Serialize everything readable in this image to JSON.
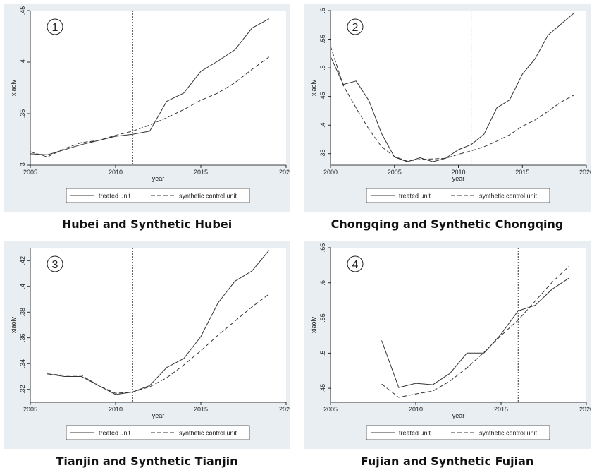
{
  "chart_data": [
    {
      "type": "line",
      "panel_number": "1",
      "caption": "Hubei and Synthetic Hubei",
      "xlabel": "year",
      "ylabel": "xiaolv",
      "xlim": [
        2005,
        2020
      ],
      "ylim": [
        0.3,
        0.45
      ],
      "xticks": [
        2005,
        2010,
        2015,
        2020
      ],
      "xtick_labels": [
        "2005",
        "2010",
        "2015",
        "2020"
      ],
      "yticks": [
        0.3,
        0.35,
        0.4,
        0.45
      ],
      "ytick_labels": [
        ".3",
        ".35",
        ".4",
        ".45"
      ],
      "intervention_year": 2011,
      "legend": [
        "treated unit",
        "synthetic control unit"
      ],
      "series": [
        {
          "name": "treated unit",
          "style": "solid",
          "x": [
            2005,
            2006,
            2007,
            2008,
            2009,
            2010,
            2011,
            2012,
            2013,
            2014,
            2015,
            2016,
            2017,
            2018,
            2019
          ],
          "y": [
            0.311,
            0.31,
            0.315,
            0.32,
            0.324,
            0.328,
            0.33,
            0.333,
            0.362,
            0.37,
            0.391,
            0.401,
            0.412,
            0.433,
            0.442
          ]
        },
        {
          "name": "synthetic control unit",
          "style": "dashed",
          "x": [
            2005,
            2006,
            2007,
            2008,
            2009,
            2010,
            2011,
            2012,
            2013,
            2014,
            2015,
            2016,
            2017,
            2018,
            2019
          ],
          "y": [
            0.313,
            0.308,
            0.316,
            0.322,
            0.324,
            0.329,
            0.333,
            0.339,
            0.346,
            0.354,
            0.363,
            0.37,
            0.38,
            0.393,
            0.405
          ]
        }
      ]
    },
    {
      "type": "line",
      "panel_number": "2",
      "caption": "Chongqing and Synthetic Chongqing",
      "xlabel": "year",
      "ylabel": "xiaolv",
      "xlim": [
        2000,
        2020
      ],
      "ylim": [
        0.33,
        0.6
      ],
      "xticks": [
        2000,
        2005,
        2010,
        2015,
        2020
      ],
      "xtick_labels": [
        "2000",
        "2005",
        "2010",
        "2015",
        "2020"
      ],
      "yticks": [
        0.35,
        0.4,
        0.45,
        0.5,
        0.55,
        0.6
      ],
      "ytick_labels": [
        ".35",
        ".4",
        ".45",
        ".5",
        ".55",
        ".6"
      ],
      "intervention_year": 2011,
      "legend": [
        "treated unit",
        "synthetic control unit"
      ],
      "series": [
        {
          "name": "treated unit",
          "style": "solid",
          "x": [
            2000,
            2001,
            2002,
            2003,
            2004,
            2005,
            2006,
            2007,
            2008,
            2009,
            2010,
            2011,
            2012,
            2013,
            2014,
            2015,
            2016,
            2017,
            2018,
            2019
          ],
          "y": [
            0.52,
            0.471,
            0.477,
            0.443,
            0.385,
            0.344,
            0.336,
            0.343,
            0.336,
            0.342,
            0.357,
            0.366,
            0.384,
            0.43,
            0.444,
            0.489,
            0.516,
            0.557,
            0.576,
            0.595
          ]
        },
        {
          "name": "synthetic control unit",
          "style": "dashed",
          "x": [
            2000,
            2001,
            2002,
            2003,
            2004,
            2005,
            2006,
            2007,
            2008,
            2009,
            2010,
            2011,
            2012,
            2013,
            2014,
            2015,
            2016,
            2017,
            2018,
            2019
          ],
          "y": [
            0.538,
            0.469,
            0.43,
            0.393,
            0.362,
            0.345,
            0.337,
            0.34,
            0.341,
            0.342,
            0.349,
            0.355,
            0.362,
            0.372,
            0.383,
            0.398,
            0.409,
            0.424,
            0.44,
            0.452
          ]
        }
      ]
    },
    {
      "type": "line",
      "panel_number": "3",
      "caption": "Tianjin and Synthetic Tianjin",
      "xlabel": "year",
      "ylabel": "xiaolv",
      "xlim": [
        2005,
        2020
      ],
      "ylim": [
        0.31,
        0.43
      ],
      "xticks": [
        2005,
        2010,
        2015,
        2020
      ],
      "xtick_labels": [
        "2005",
        "2010",
        "2015",
        "2020"
      ],
      "yticks": [
        0.32,
        0.34,
        0.36,
        0.38,
        0.4,
        0.42
      ],
      "ytick_labels": [
        ".32",
        ".34",
        ".36",
        ".38",
        ".4",
        ".42"
      ],
      "intervention_year": 2011,
      "legend": [
        "treated unit",
        "synthetic control unit"
      ],
      "series": [
        {
          "name": "treated unit",
          "style": "solid",
          "x": [
            2006,
            2007,
            2008,
            2009,
            2010,
            2011,
            2012,
            2013,
            2014,
            2015,
            2016,
            2017,
            2018,
            2019
          ],
          "y": [
            0.332,
            0.33,
            0.33,
            0.323,
            0.316,
            0.318,
            0.323,
            0.337,
            0.344,
            0.361,
            0.387,
            0.404,
            0.412,
            0.428
          ]
        },
        {
          "name": "synthetic control unit",
          "style": "dashed",
          "x": [
            2006,
            2007,
            2008,
            2009,
            2010,
            2011,
            2012,
            2013,
            2014,
            2015,
            2016,
            2017,
            2018,
            2019
          ],
          "y": [
            0.332,
            0.331,
            0.331,
            0.323,
            0.317,
            0.318,
            0.322,
            0.329,
            0.339,
            0.35,
            0.362,
            0.373,
            0.384,
            0.394
          ]
        }
      ]
    },
    {
      "type": "line",
      "panel_number": "4",
      "caption": "Fujian and Synthetic Fujian",
      "xlabel": "year",
      "ylabel": "xiaolv",
      "xlim": [
        2005,
        2020
      ],
      "ylim": [
        0.43,
        0.65
      ],
      "xticks": [
        2005,
        2010,
        2015,
        2020
      ],
      "xtick_labels": [
        "2005",
        "2010",
        "2015",
        "2020"
      ],
      "yticks": [
        0.45,
        0.5,
        0.55,
        0.6,
        0.65
      ],
      "ytick_labels": [
        ".45",
        ".5",
        ".55",
        ".6",
        ".65"
      ],
      "intervention_year": 2016,
      "legend": [
        "treated unit",
        "synthetic control unit"
      ],
      "series": [
        {
          "name": "treated unit",
          "style": "solid",
          "x": [
            2008,
            2009,
            2010,
            2011,
            2012,
            2013,
            2014,
            2015,
            2016,
            2017,
            2018,
            2019
          ],
          "y": [
            0.518,
            0.451,
            0.457,
            0.455,
            0.471,
            0.5,
            0.5,
            0.527,
            0.56,
            0.568,
            0.591,
            0.607
          ]
        },
        {
          "name": "synthetic control unit",
          "style": "dashed",
          "x": [
            2008,
            2009,
            2010,
            2011,
            2012,
            2013,
            2014,
            2015,
            2016,
            2017,
            2018,
            2019
          ],
          "y": [
            0.456,
            0.437,
            0.442,
            0.446,
            0.46,
            0.479,
            0.501,
            0.525,
            0.547,
            0.574,
            0.601,
            0.624
          ]
        }
      ]
    }
  ]
}
